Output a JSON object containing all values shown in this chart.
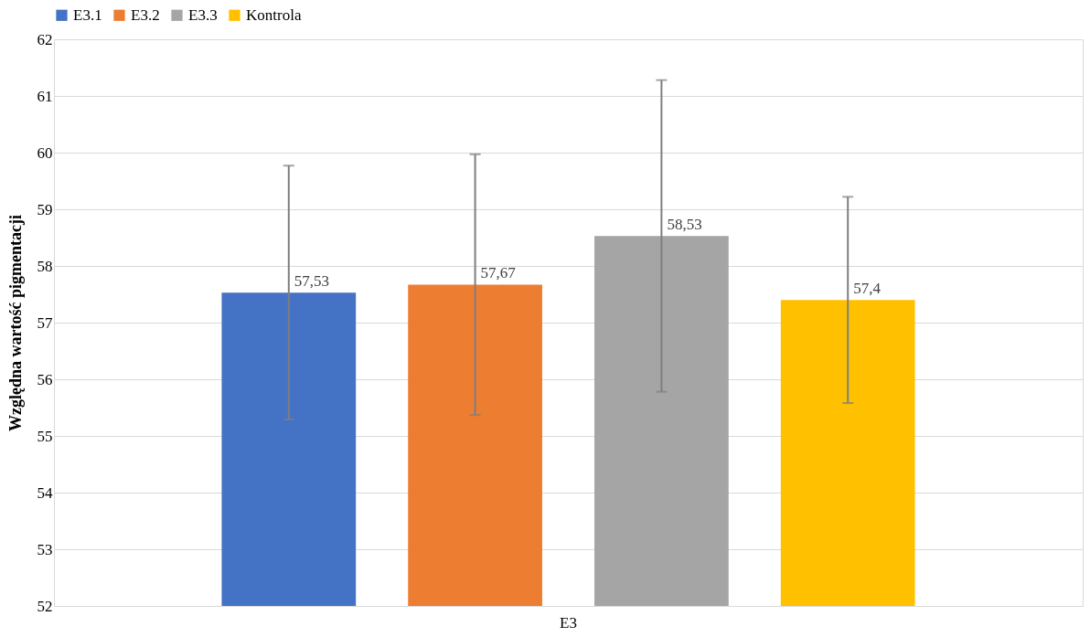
{
  "chart_data": {
    "type": "bar",
    "ylabel": "Względna wartość pigmentacji",
    "categories": [
      "E3"
    ],
    "series": [
      {
        "name": "E3.1",
        "color": "#4472c4",
        "values": [
          57.53
        ],
        "errors": [
          2.24
        ],
        "value_labels": [
          "57,53"
        ]
      },
      {
        "name": "E3.2",
        "color": "#ed7d31",
        "values": [
          57.67
        ],
        "errors": [
          2.3
        ],
        "value_labels": [
          "57,67"
        ]
      },
      {
        "name": "E3.3",
        "color": "#a5a5a5",
        "values": [
          58.53
        ],
        "errors": [
          2.75
        ],
        "value_labels": [
          "58,53"
        ]
      },
      {
        "name": "Kontrola",
        "color": "#ffc000",
        "values": [
          57.4
        ],
        "errors": [
          1.82
        ],
        "value_labels": [
          "57,4"
        ]
      }
    ],
    "ylim": [
      52,
      62
    ],
    "yticks": [
      52,
      53,
      54,
      55,
      56,
      57,
      58,
      59,
      60,
      61,
      62
    ],
    "grid": "y",
    "legend": "top"
  }
}
